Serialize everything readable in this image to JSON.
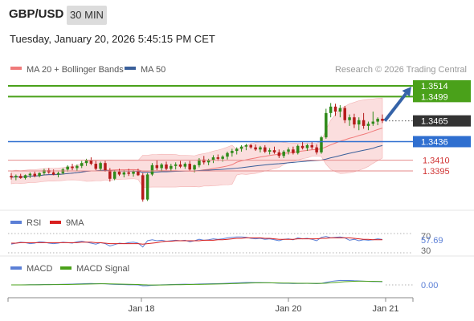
{
  "header": {
    "pair": "GBP/USD",
    "timeframe": "30 MIN",
    "datetime": "Tuesday, January 20, 2026 5:45:15 PM CET"
  },
  "legend": {
    "ma20": "MA 20 + Bollinger Bands",
    "ma50": "MA 50",
    "credit": "Research © 2026 Trading Central",
    "ma20_color": "#f07a7a",
    "ma50_color": "#3a5f9a"
  },
  "rsi": {
    "label": "RSI",
    "ma_label": "9MA",
    "value": "57.69",
    "level_high": "70",
    "level_low": "30",
    "rsi_color": "#5b7fd6",
    "ma_color": "#d81f1f"
  },
  "macd": {
    "label": "MACD",
    "signal_label": "MACD Signal",
    "value": "0.00",
    "macd_color": "#5b7fd6",
    "signal_color": "#4aa11a"
  },
  "chart_data": {
    "type": "candlestick",
    "ylim": [
      1.3325,
      1.3535
    ],
    "x_ticks": [
      "Jan 18",
      "Jan 20",
      "Jan 21"
    ],
    "levels": [
      {
        "value": 1.3514,
        "label": "1.3514",
        "kind": "resistance",
        "color": "#4aa11a"
      },
      {
        "value": 1.3499,
        "label": "1.3499",
        "kind": "resistance",
        "color": "#4aa11a"
      },
      {
        "value": 1.3465,
        "label": "1.3465",
        "kind": "last-price",
        "color": "#333333"
      },
      {
        "value": 1.3436,
        "label": "1.3436",
        "kind": "pivot",
        "color": "#2f6fd0"
      },
      {
        "value": 1.341,
        "label": "1.3410",
        "kind": "support",
        "color": "#d03434"
      },
      {
        "value": 1.3395,
        "label": "1.3395",
        "kind": "support",
        "color": "#d03434"
      }
    ],
    "arrow": {
      "from": 1.3465,
      "to": 1.3514,
      "direction": "up"
    },
    "colors": {
      "up": "#2f8a1a",
      "down": "#b61b1b",
      "band_fill": "#fbdede"
    },
    "candles": [
      [
        1.3388,
        1.3392,
        1.3383,
        1.3386
      ],
      [
        1.3386,
        1.339,
        1.3382,
        1.3388
      ],
      [
        1.3388,
        1.3391,
        1.3384,
        1.3385
      ],
      [
        1.3385,
        1.339,
        1.3383,
        1.3389
      ],
      [
        1.3389,
        1.3393,
        1.3385,
        1.3391
      ],
      [
        1.3391,
        1.3394,
        1.3386,
        1.3388
      ],
      [
        1.3388,
        1.3393,
        1.3386,
        1.3392
      ],
      [
        1.3392,
        1.3398,
        1.3389,
        1.3396
      ],
      [
        1.3396,
        1.3399,
        1.3391,
        1.3393
      ],
      [
        1.3393,
        1.3397,
        1.3389,
        1.339
      ],
      [
        1.339,
        1.3394,
        1.3386,
        1.3392
      ],
      [
        1.3392,
        1.3399,
        1.339,
        1.3397
      ],
      [
        1.3397,
        1.3403,
        1.3394,
        1.3401
      ],
      [
        1.3401,
        1.3405,
        1.3396,
        1.3399
      ],
      [
        1.3399,
        1.3404,
        1.3395,
        1.3402
      ],
      [
        1.3402,
        1.3409,
        1.3399,
        1.3406
      ],
      [
        1.3406,
        1.3412,
        1.3402,
        1.341
      ],
      [
        1.341,
        1.3414,
        1.3403,
        1.3405
      ],
      [
        1.3405,
        1.3409,
        1.3396,
        1.3398
      ],
      [
        1.3398,
        1.3408,
        1.3395,
        1.3406
      ],
      [
        1.3406,
        1.3409,
        1.3394,
        1.3396
      ],
      [
        1.3396,
        1.3399,
        1.338,
        1.3384
      ],
      [
        1.3384,
        1.3396,
        1.3382,
        1.3394
      ],
      [
        1.3394,
        1.3398,
        1.3388,
        1.339
      ],
      [
        1.339,
        1.3396,
        1.3386,
        1.3393
      ],
      [
        1.3393,
        1.3398,
        1.3388,
        1.3391
      ],
      [
        1.3391,
        1.3396,
        1.3387,
        1.3394
      ],
      [
        1.3394,
        1.3398,
        1.3388,
        1.3389
      ],
      [
        1.3389,
        1.3392,
        1.3352,
        1.3355
      ],
      [
        1.3355,
        1.3392,
        1.3353,
        1.339
      ],
      [
        1.339,
        1.3406,
        1.3388,
        1.3403
      ],
      [
        1.3403,
        1.341,
        1.3396,
        1.3399
      ],
      [
        1.3399,
        1.3406,
        1.3394,
        1.3404
      ],
      [
        1.3404,
        1.3408,
        1.3396,
        1.3398
      ],
      [
        1.3398,
        1.3405,
        1.3395,
        1.3402
      ],
      [
        1.3402,
        1.3407,
        1.3397,
        1.3404
      ],
      [
        1.3404,
        1.3409,
        1.3399,
        1.3401
      ],
      [
        1.3401,
        1.3407,
        1.3398,
        1.3405
      ],
      [
        1.3405,
        1.3409,
        1.3395,
        1.3397
      ],
      [
        1.3397,
        1.3404,
        1.3393,
        1.3403
      ],
      [
        1.3403,
        1.3413,
        1.34,
        1.3411
      ],
      [
        1.3411,
        1.3416,
        1.3404,
        1.3407
      ],
      [
        1.3407,
        1.3412,
        1.3403,
        1.341
      ],
      [
        1.341,
        1.3417,
        1.3406,
        1.3414
      ],
      [
        1.3414,
        1.3418,
        1.3409,
        1.3412
      ],
      [
        1.3412,
        1.3417,
        1.3408,
        1.3415
      ],
      [
        1.3415,
        1.3422,
        1.3411,
        1.342
      ],
      [
        1.342,
        1.3426,
        1.3415,
        1.3423
      ],
      [
        1.3423,
        1.3428,
        1.3418,
        1.3426
      ],
      [
        1.3426,
        1.3431,
        1.3422,
        1.3429
      ],
      [
        1.3429,
        1.3433,
        1.3424,
        1.3431
      ],
      [
        1.3431,
        1.3433,
        1.3426,
        1.3428
      ],
      [
        1.3428,
        1.3432,
        1.3423,
        1.3425
      ],
      [
        1.3425,
        1.343,
        1.3421,
        1.3428
      ],
      [
        1.3428,
        1.3431,
        1.342,
        1.3422
      ],
      [
        1.3422,
        1.3427,
        1.3418,
        1.3424
      ],
      [
        1.3424,
        1.3429,
        1.3419,
        1.3421
      ],
      [
        1.3421,
        1.3425,
        1.3413,
        1.3416
      ],
      [
        1.3416,
        1.3424,
        1.3413,
        1.3422
      ],
      [
        1.3422,
        1.3428,
        1.3418,
        1.3425
      ],
      [
        1.3425,
        1.3429,
        1.3418,
        1.342
      ],
      [
        1.342,
        1.3432,
        1.3418,
        1.343
      ],
      [
        1.343,
        1.3436,
        1.3425,
        1.3427
      ],
      [
        1.3427,
        1.3433,
        1.3423,
        1.3431
      ],
      [
        1.3431,
        1.3436,
        1.3425,
        1.3428
      ],
      [
        1.3428,
        1.3432,
        1.3418,
        1.3421
      ],
      [
        1.3421,
        1.3444,
        1.3419,
        1.3442
      ],
      [
        1.3442,
        1.3482,
        1.344,
        1.3476
      ],
      [
        1.3476,
        1.349,
        1.347,
        1.3485
      ],
      [
        1.3485,
        1.3489,
        1.3472,
        1.3478
      ],
      [
        1.3478,
        1.3487,
        1.347,
        1.3483
      ],
      [
        1.3483,
        1.3486,
        1.3462,
        1.3466
      ],
      [
        1.3466,
        1.3474,
        1.3458,
        1.347
      ],
      [
        1.347,
        1.3475,
        1.3455,
        1.346
      ],
      [
        1.346,
        1.347,
        1.3452,
        1.3466
      ],
      [
        1.3466,
        1.3476,
        1.3454,
        1.3458
      ],
      [
        1.3458,
        1.3464,
        1.3452,
        1.3461
      ],
      [
        1.3461,
        1.3478,
        1.3458,
        1.3464
      ],
      [
        1.3464,
        1.347,
        1.3459,
        1.3468
      ],
      [
        1.3468,
        1.3474,
        1.3462,
        1.3465
      ]
    ],
    "rsi_series": [
      48,
      50,
      52,
      51,
      49,
      50,
      53,
      52,
      50,
      49,
      50,
      52,
      51,
      50,
      53,
      54,
      52,
      50,
      48,
      51,
      49,
      44,
      47,
      50,
      49,
      51,
      52,
      50,
      42,
      55,
      57,
      55,
      56,
      54,
      55,
      56,
      55,
      56,
      53,
      55,
      58,
      56,
      57,
      59,
      58,
      59,
      61,
      62,
      63,
      63,
      62,
      60,
      59,
      60,
      58,
      59,
      57,
      55,
      58,
      59,
      57,
      61,
      59,
      60,
      58,
      55,
      62,
      64,
      61,
      62,
      63,
      61,
      56,
      58,
      55,
      57,
      56,
      57,
      59,
      57.69
    ],
    "rsi_ma_series": [
      50,
      50,
      51,
      51,
      51,
      51,
      51,
      51,
      51,
      51,
      51,
      51,
      51,
      51,
      51,
      52,
      52,
      52,
      51,
      51,
      50,
      49,
      49,
      49,
      49,
      49,
      49,
      49,
      48,
      49,
      50,
      51,
      53,
      54,
      54,
      55,
      55,
      55,
      55,
      55,
      55,
      56,
      56,
      56,
      57,
      57,
      58,
      59,
      60,
      60,
      61,
      61,
      61,
      61,
      60,
      60,
      59,
      58,
      58,
      58,
      58,
      59,
      59,
      59,
      59,
      59,
      60,
      60,
      61,
      61,
      61,
      61,
      61,
      60,
      59,
      58,
      58,
      57,
      57,
      57
    ]
  }
}
